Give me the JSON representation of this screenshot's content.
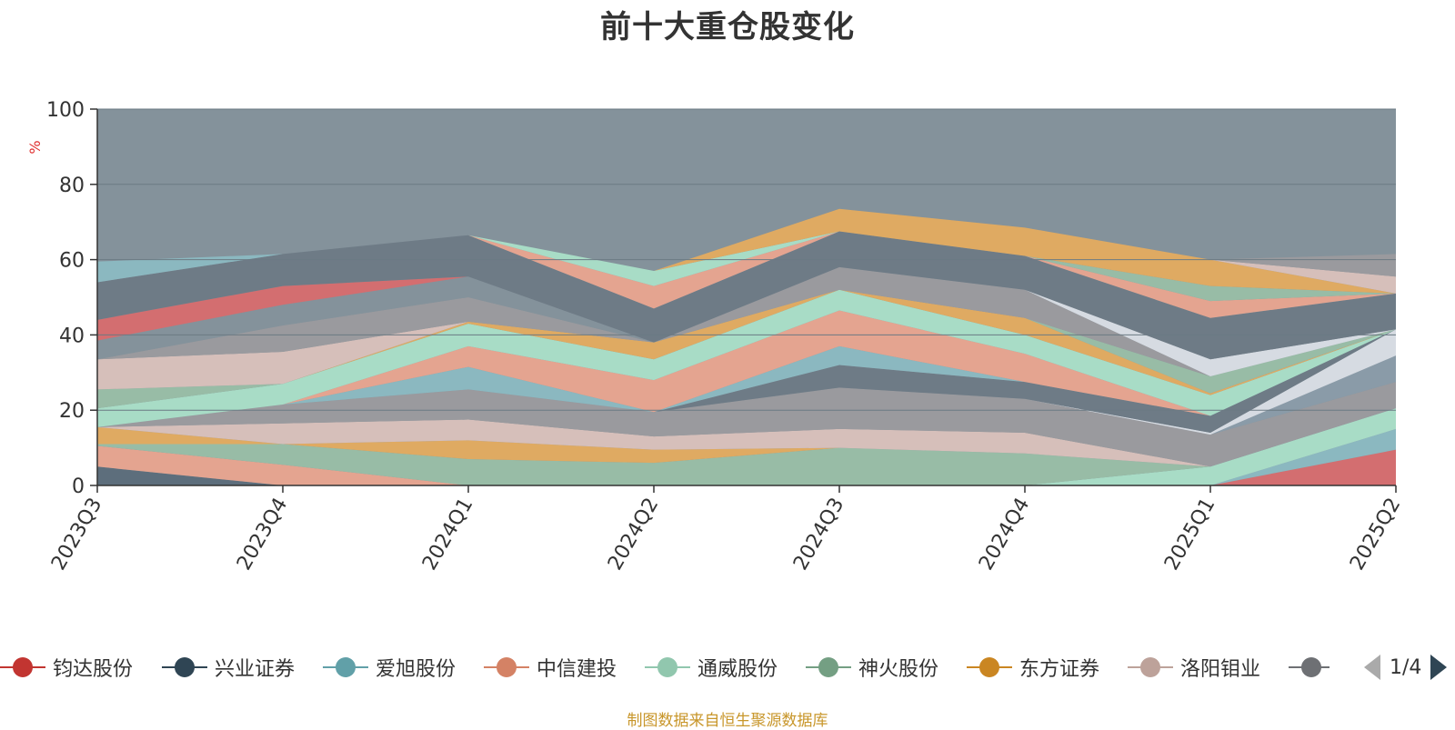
{
  "title": "前十大重仓股变化",
  "source_note": "制图数据来自恒生聚源数据库",
  "colors": {
    "background_fill": "#84929b",
    "axis": "#333333",
    "grid": "#6b7a83",
    "unit_label": "#e03030",
    "source_note": "#c8962a"
  },
  "chart_data": {
    "type": "area",
    "stacked": true,
    "title": "前十大重仓股变化",
    "ylabel": "%",
    "xlabel": "",
    "categories": [
      "2023Q3",
      "2023Q4",
      "2024Q1",
      "2024Q2",
      "2024Q3",
      "2024Q4",
      "2025Q1",
      "2025Q2"
    ],
    "ylim": [
      0,
      100
    ],
    "yticks": [
      0,
      20,
      40,
      60,
      80,
      100
    ],
    "grid": true,
    "series": [
      {
        "color": "#d36e70",
        "values": [
          0,
          0,
          0,
          0,
          0,
          0,
          0,
          9.5
        ]
      },
      {
        "color": "#5d6e7c",
        "values": [
          5,
          0,
          0,
          0,
          0,
          0,
          0,
          0
        ]
      },
      {
        "color": "#8bb8c0",
        "values": [
          0,
          0,
          0,
          0,
          0,
          0,
          0,
          5.5
        ]
      },
      {
        "color": "#e4a490",
        "values": [
          5.5,
          5.5,
          0,
          0,
          0,
          0,
          0,
          0
        ]
      },
      {
        "color": "#a8dcc6",
        "values": [
          0,
          0,
          0,
          0,
          0,
          0,
          5,
          5.5
        ]
      },
      {
        "color": "#98bca6",
        "values": [
          0.5,
          5.5,
          7,
          6,
          10,
          8.5,
          0,
          0
        ]
      },
      {
        "color": "#dfaa62",
        "values": [
          4.5,
          0,
          5,
          3.5,
          0,
          0,
          0,
          0
        ]
      },
      {
        "color": "#d6bfba",
        "values": [
          0,
          5.5,
          5.5,
          3.5,
          5,
          5.5,
          0,
          0
        ]
      },
      {
        "color": "#9a9a9e",
        "values": [
          0,
          5,
          8,
          6.5,
          11,
          9,
          8.5,
          7
        ]
      },
      {
        "color": "#8a9ba8",
        "values": [
          0,
          0,
          0,
          0,
          0,
          0,
          0,
          7
        ]
      },
      {
        "color": "#d6dbe2",
        "values": [
          0,
          0,
          0,
          0,
          0,
          0,
          0.5,
          7
        ]
      },
      {
        "color": "#6e7b86",
        "values": [
          0,
          0,
          0,
          0,
          6,
          4.5,
          4.5,
          0
        ]
      },
      {
        "color": "#8bb8c0",
        "values": [
          0,
          0,
          6,
          0,
          5,
          0,
          0,
          0
        ]
      },
      {
        "color": "#e4a490",
        "values": [
          0,
          0,
          5.5,
          8.5,
          9.5,
          7.5,
          0,
          0
        ]
      },
      {
        "color": "#a8dcc6",
        "values": [
          5,
          5.5,
          6,
          5.5,
          5.5,
          5,
          5.5,
          0
        ]
      },
      {
        "color": "#98bca6",
        "values": [
          5,
          0,
          0,
          0,
          0,
          0,
          0,
          0
        ]
      },
      {
        "color": "#dfaa62",
        "values": [
          0,
          0,
          0.5,
          4.5,
          0,
          4.5,
          0.5,
          0
        ]
      },
      {
        "color": "#d6bfba",
        "values": [
          8,
          8.5,
          0,
          0,
          0,
          0,
          0,
          0
        ]
      },
      {
        "color": "#98bca6",
        "values": [
          0,
          0,
          0,
          0,
          0,
          0,
          4.5,
          0
        ]
      },
      {
        "color": "#9a9a9e",
        "values": [
          0,
          7,
          6.5,
          0,
          6,
          7.5,
          0,
          0
        ]
      },
      {
        "color": "#d6dbe2",
        "values": [
          0,
          0,
          0,
          0,
          0,
          0,
          4.5,
          0
        ]
      },
      {
        "color": "#84929b",
        "values": [
          5,
          5.5,
          5.5,
          0,
          0,
          0,
          0,
          0
        ]
      },
      {
        "color": "#d36e70",
        "values": [
          5.5,
          5,
          0,
          0,
          0,
          0,
          0,
          0
        ]
      },
      {
        "color": "#6e7b86",
        "values": [
          10,
          8.5,
          11,
          9,
          9.5,
          9,
          11,
          9.5
        ]
      },
      {
        "color": "#e4a490",
        "values": [
          0,
          0,
          0,
          6,
          0,
          0,
          4.5,
          0
        ]
      },
      {
        "color": "#98bca6",
        "values": [
          0,
          0,
          0,
          0,
          0,
          0,
          4,
          0
        ]
      },
      {
        "color": "#a8dcc6",
        "values": [
          0,
          0,
          0,
          4,
          0,
          0,
          0,
          0
        ]
      },
      {
        "color": "#8bb8c0",
        "values": [
          5.5,
          0,
          0,
          0,
          0,
          0,
          0,
          0
        ]
      },
      {
        "color": "#dfaa62",
        "values": [
          0,
          0,
          0,
          0,
          6,
          7.5,
          7,
          0
        ]
      },
      {
        "color": "#d6bfba",
        "values": [
          0,
          0,
          0,
          0,
          0,
          0,
          0,
          4.5
        ]
      },
      {
        "color": "#9a9a9e",
        "values": [
          0,
          0,
          0,
          0,
          0,
          0,
          0,
          6
        ]
      }
    ]
  },
  "legend": {
    "items": [
      {
        "label": "钧达股份",
        "color": "#c23531"
      },
      {
        "label": "兴业证券",
        "color": "#2f4554"
      },
      {
        "label": "爱旭股份",
        "color": "#61a0a8"
      },
      {
        "label": "中信建投",
        "color": "#d48265"
      },
      {
        "label": "通威股份",
        "color": "#91c7ae"
      },
      {
        "label": "神火股份",
        "color": "#749f83"
      },
      {
        "label": "东方证券",
        "color": "#ca8622"
      },
      {
        "label": "洛阳钼业",
        "color": "#bda29a"
      },
      {
        "label": "",
        "color": "#6e7074"
      }
    ],
    "page": "1/4"
  }
}
